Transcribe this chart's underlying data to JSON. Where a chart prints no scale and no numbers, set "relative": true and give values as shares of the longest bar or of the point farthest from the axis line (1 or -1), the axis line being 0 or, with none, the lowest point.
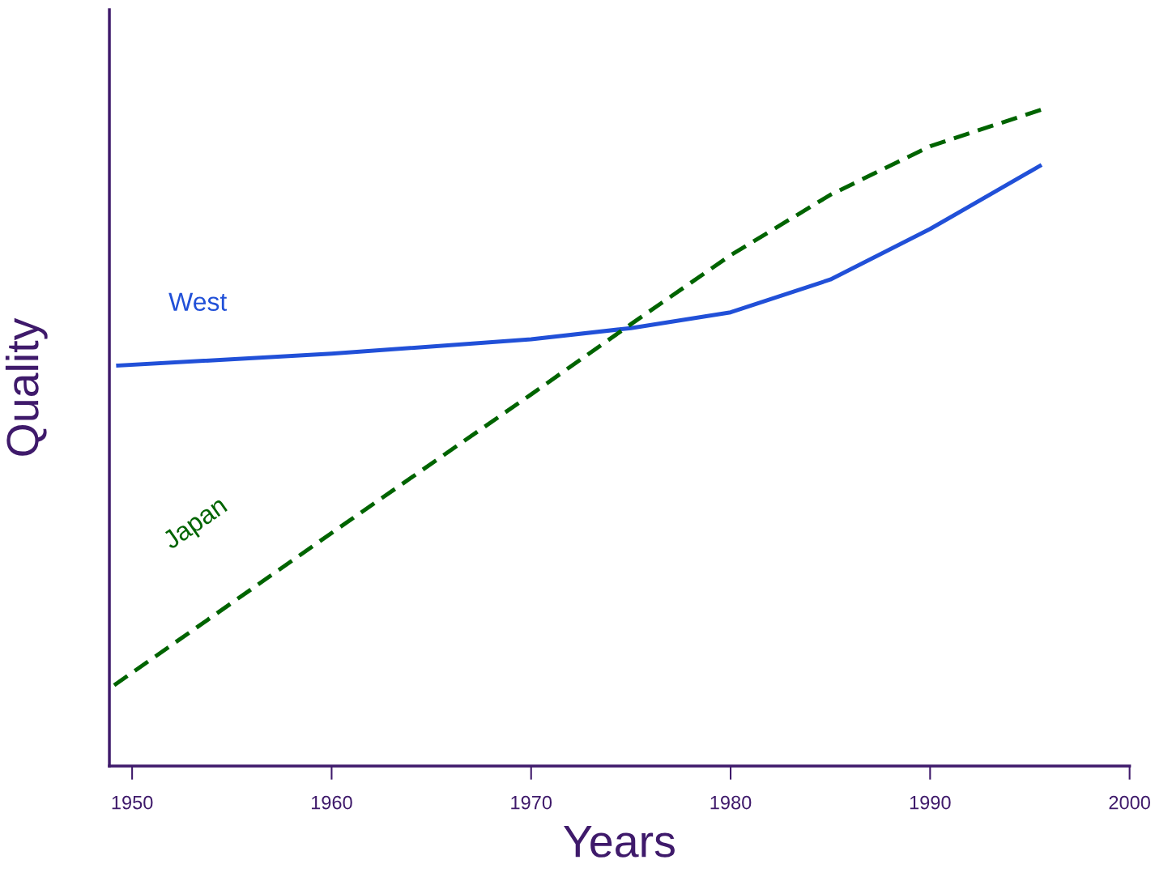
{
  "chart_data": {
    "type": "line",
    "relative": true,
    "xlabel": "Years",
    "ylabel": "Quality",
    "xlim": [
      1948.86,
      2000
    ],
    "xticks": [
      1950,
      1960,
      1970,
      1980,
      1990,
      2000
    ],
    "legend": false,
    "grid": false,
    "series": [
      {
        "name": "West",
        "color": "#2150d8",
        "line_style": "solid",
        "x": [
          1949.3,
          1960,
          1970,
          1975,
          1980,
          1985,
          1990,
          1995.5
        ],
        "values": [
          0.61,
          0.628,
          0.65,
          0.667,
          0.691,
          0.741,
          0.818,
          0.914
        ]
      },
      {
        "name": "Japan",
        "color": "#006400",
        "line_style": "dashed",
        "x": [
          1949.1,
          1960,
          1970,
          1975,
          1980,
          1985,
          1990,
          1995.6
        ],
        "values": [
          0.123,
          0.355,
          0.566,
          0.673,
          0.778,
          0.87,
          0.944,
          1.0
        ]
      }
    ]
  }
}
